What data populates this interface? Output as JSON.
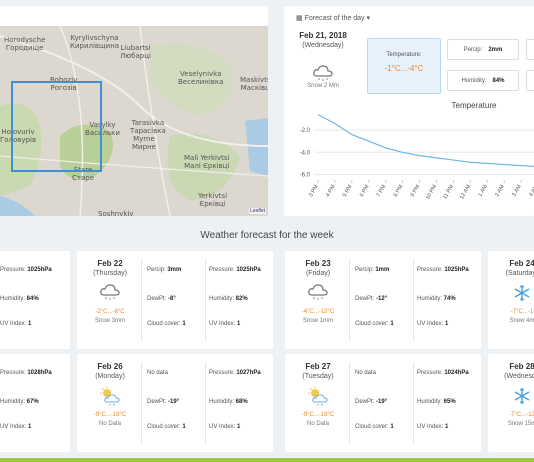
{
  "map": {
    "labels": [
      {
        "id": "horodysche",
        "text": "Horodysche\nГородище"
      },
      {
        "id": "kyrylivschyna",
        "text": "Kyrylivschyna\nКирилівщина"
      },
      {
        "id": "liubartsi",
        "text": "Liubartsi\nЛюбарці"
      },
      {
        "id": "rohoziv",
        "text": "Rohoziv\nРогозів"
      },
      {
        "id": "veselynivka",
        "text": "Veselynivka\nВеселинівка"
      },
      {
        "id": "maskivtsi",
        "text": "Maskivtsi\nМасківці"
      },
      {
        "id": "vasylky",
        "text": "Vasylky\nВасильки"
      },
      {
        "id": "tarasivka",
        "text": "Tarasivka\nТарасівка"
      },
      {
        "id": "myrne",
        "text": "Myrne\nМирне"
      },
      {
        "id": "holovurov",
        "text": "Holovuriv\nГоловурів"
      },
      {
        "id": "mali-yerkivtsi",
        "text": "Mali Yerkivtsi\nМалі Єрківці"
      },
      {
        "id": "stare",
        "text": "Stare\nСтаре"
      },
      {
        "id": "yerkivtsi",
        "text": "Yerkivtsi\nЄрківці"
      },
      {
        "id": "soshnykiv",
        "text": "Soshnykiv"
      }
    ],
    "attribution": "Leaflet"
  },
  "forecast_day": {
    "title": "Forecast of the day",
    "date": "Feb 21, 2018",
    "weekday": "(Wednesday)",
    "summary": "Snow 2 Mm",
    "icon": "cloud-snow-icon",
    "temperature_label": "Temperature:",
    "temperature_value": "-1°C...-4°C",
    "percip_label": "Percip:",
    "percip_value": "2mm",
    "humidity_label": "Humidity:",
    "humidity_value": "84%"
  },
  "chart_data": {
    "type": "line",
    "title": "Temperature",
    "x": [
      "3 PM",
      "4 PM",
      "5 PM",
      "6 PM",
      "7 PM",
      "8 PM",
      "9 PM",
      "10 PM",
      "11 PM",
      "12 AM",
      "1 AM",
      "2 AM",
      "3 AM",
      "4 AM"
    ],
    "series": [
      {
        "values": [
          -0.6,
          -1.4,
          -2.4,
          -3.0,
          -3.6,
          -4.0,
          -4.3,
          -4.5,
          -4.7,
          -4.9,
          -5.0,
          -5.1,
          -5.2,
          -5.3
        ]
      }
    ],
    "yticks": [
      "-2.0",
      "-4.0",
      "-6.0"
    ],
    "ylim": [
      -6.5,
      0
    ],
    "grid": true,
    "color": "#6fb6ea"
  },
  "week_title": "Weather forecast for the week",
  "labels": {
    "pressure": "Pressure:",
    "humidity": "Humidity:",
    "uv": "UV Index:",
    "percip": "Percip:",
    "dewpt": "DewPt:",
    "cloud": "Cloud cover:",
    "nodata": "No data"
  },
  "row1": {
    "left_partial": {
      "pressure": "1025hPa",
      "humidity": "84%",
      "uv": "1"
    },
    "cards": [
      {
        "date": "Feb 22",
        "weekday": "(Thursday)",
        "icon": "cloud-snow-icon",
        "range": "-2°C...-8°C",
        "summary": "Snow 3mm",
        "percip": "3mm",
        "dewpt": "-8°",
        "cloud": "1",
        "pressure": "1025hPa",
        "humidity": "82%",
        "uv": "1"
      },
      {
        "date": "Feb 23",
        "weekday": "(Friday)",
        "icon": "cloud-snow-icon",
        "range": "-4°C...-12°C",
        "summary": "Snow 1mm",
        "percip": "1mm",
        "dewpt": "-12°",
        "cloud": "1",
        "pressure": "1025hPa",
        "humidity": "74%",
        "uv": "1"
      },
      {
        "date": "Feb 24",
        "weekday": "(Saturday)",
        "icon": "snowflake-icon",
        "range": "-7°C...-1",
        "summary": "Snow 4m"
      }
    ]
  },
  "row2": {
    "left_partial": {
      "pressure": "1028hPa",
      "humidity": "67%",
      "uv": "1"
    },
    "cards": [
      {
        "date": "Feb 26",
        "weekday": "(Monday)",
        "icon": "sun-cloud-icon",
        "range": "-9°C...-18°C",
        "summary": "No Data",
        "percip_text": "No data",
        "dewpt": "-19°",
        "cloud": "1",
        "pressure": "1027hPa",
        "humidity": "68%",
        "uv": "1"
      },
      {
        "date": "Feb 27",
        "weekday": "(Tuesday)",
        "icon": "sun-cloud-icon",
        "range": "-9°C...-18°C",
        "summary": "No Data",
        "percip_text": "No data",
        "dewpt": "-19°",
        "cloud": "1",
        "pressure": "1024hPa",
        "humidity": "65%",
        "uv": "1"
      },
      {
        "date": "Feb 28",
        "weekday": "(Wednesda",
        "icon": "snowflake-icon",
        "range": "-7°C...-12",
        "summary": "Snow 15m"
      }
    ]
  }
}
